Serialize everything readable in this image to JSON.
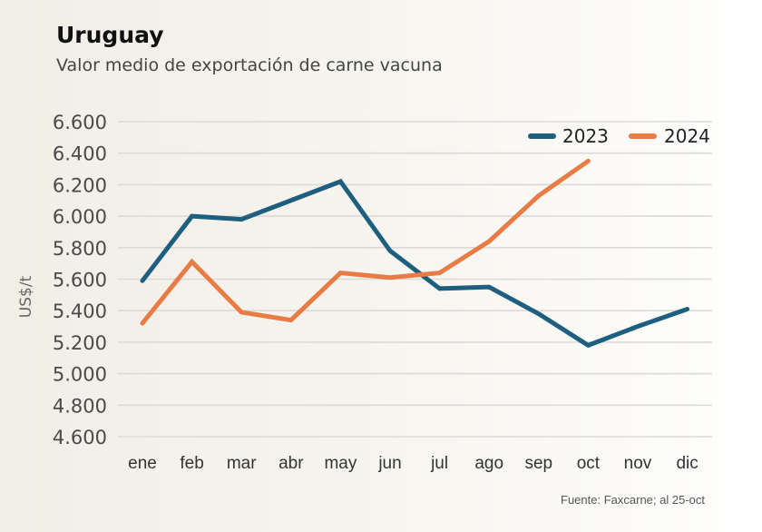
{
  "header": {
    "title": "Uruguay",
    "subtitle": "Valor medio de exportación de carne vacuna"
  },
  "source": "Fuente: Faxcarne; al 25-oct",
  "chart_data": {
    "type": "line",
    "title": "Uruguay",
    "subtitle": "Valor medio de exportación de carne vacuna",
    "xlabel": "",
    "ylabel": "US$/t",
    "categories": [
      "ene",
      "feb",
      "mar",
      "abr",
      "may",
      "jun",
      "jul",
      "ago",
      "sep",
      "oct",
      "nov",
      "dic"
    ],
    "yticks": [
      6600,
      6400,
      6200,
      6000,
      5800,
      5600,
      5400,
      5200,
      5000,
      4800,
      4600
    ],
    "ytick_labels": [
      "6.600",
      "6.400",
      "6.200",
      "6.000",
      "5.800",
      "5.600",
      "5.400",
      "5.200",
      "5.000",
      "4.800",
      "4.600"
    ],
    "ylim": [
      4600,
      6600
    ],
    "grid": true,
    "legend_position": "top-right",
    "series": [
      {
        "name": "2023",
        "color": "#1e5f80",
        "values": [
          5590,
          6000,
          5980,
          6100,
          6220,
          5780,
          5540,
          5550,
          5380,
          5180,
          5300,
          5410
        ]
      },
      {
        "name": "2024",
        "color": "#e97b45",
        "values": [
          5320,
          5710,
          5390,
          5340,
          5640,
          5610,
          5640,
          5840,
          6130,
          6350,
          null,
          null
        ]
      }
    ],
    "source": "Fuente: Faxcarne; al 25-oct"
  }
}
